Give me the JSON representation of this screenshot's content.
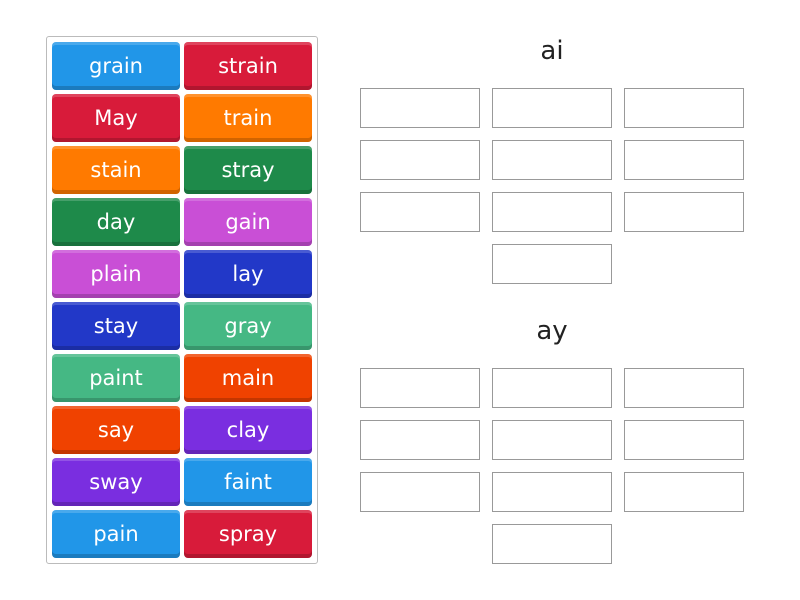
{
  "tiles": [
    {
      "label": "grain",
      "color": "#2196e8"
    },
    {
      "label": "strain",
      "color": "#d81b3a"
    },
    {
      "label": "May",
      "color": "#d81b3a"
    },
    {
      "label": "train",
      "color": "#ff7a00"
    },
    {
      "label": "stain",
      "color": "#ff7a00"
    },
    {
      "label": "stray",
      "color": "#1e8a4a"
    },
    {
      "label": "day",
      "color": "#1e8a4a"
    },
    {
      "label": "gain",
      "color": "#c94fd6"
    },
    {
      "label": "plain",
      "color": "#c94fd6"
    },
    {
      "label": "lay",
      "color": "#2238c8"
    },
    {
      "label": "stay",
      "color": "#2238c8"
    },
    {
      "label": "gray",
      "color": "#45b884"
    },
    {
      "label": "paint",
      "color": "#45b884"
    },
    {
      "label": "main",
      "color": "#f04200"
    },
    {
      "label": "say",
      "color": "#f04200"
    },
    {
      "label": "clay",
      "color": "#7a2ee0"
    },
    {
      "label": "sway",
      "color": "#7a2ee0"
    },
    {
      "label": "faint",
      "color": "#2196e8"
    },
    {
      "label": "pain",
      "color": "#2196e8"
    },
    {
      "label": "spray",
      "color": "#d81b3a"
    }
  ],
  "groups": [
    {
      "title": "ai",
      "slots": 10
    },
    {
      "title": "ay",
      "slots": 10
    }
  ]
}
